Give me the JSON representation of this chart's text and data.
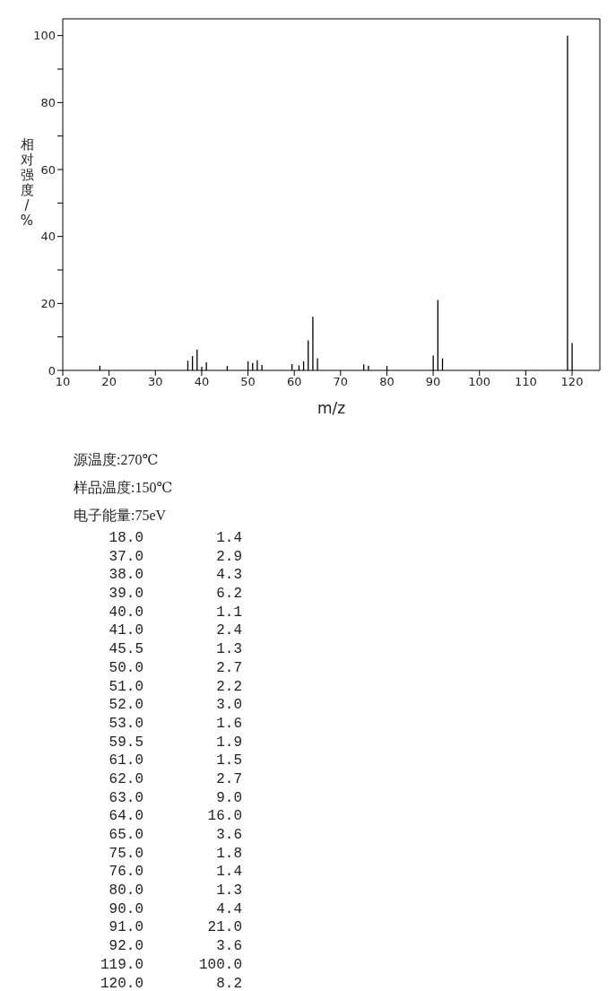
{
  "chart_data": [
    {
      "type": "bar",
      "xlabel": "m/z",
      "ylabel": "相对强度/%",
      "x": [
        18,
        37,
        38,
        39,
        40,
        41,
        45.5,
        50,
        51,
        52,
        53,
        59.5,
        61,
        62,
        63,
        64,
        65,
        75,
        76,
        80,
        90,
        91,
        92,
        119,
        120
      ],
      "values": [
        1.4,
        2.9,
        4.3,
        6.2,
        1.1,
        2.4,
        1.3,
        2.7,
        2.2,
        3.0,
        1.6,
        1.9,
        1.5,
        2.7,
        9.0,
        16.0,
        3.6,
        1.8,
        1.4,
        1.3,
        4.4,
        21.0,
        3.6,
        100.0,
        8.2
      ],
      "color": "#000000",
      "xlim": [
        10,
        126
      ],
      "xticks": [
        10,
        20,
        30,
        40,
        50,
        60,
        70,
        80,
        90,
        100,
        110,
        120
      ],
      "ylim": [
        0,
        105
      ],
      "yticks": [
        0,
        {
          "value": 10,
          "label": null
        },
        20,
        {
          "value": 30,
          "label": null
        },
        40,
        {
          "value": 50,
          "label": null
        },
        60,
        {
          "value": 70,
          "label": null
        },
        80,
        {
          "value": 90,
          "label": null
        },
        100
      ]
    },
    {
      "type": "other",
      "annotations": [
        "源温度:270℃",
        "样品温度:150℃",
        "电子能量:75eV",
        "18.0",
        "1.4",
        "37.0",
        "2.9",
        "38.0",
        "4.3",
        "39.0",
        "6.2",
        "40.0",
        "1.1",
        "41.0",
        "2.4",
        "45.5",
        "1.3",
        "50.0",
        "2.7",
        "51.0",
        "2.2",
        "52.0",
        "3.0",
        "53.0",
        "1.6",
        "59.5",
        "1.9",
        "61.0",
        "1.5",
        "62.0",
        "2.7",
        "63.0",
        "9.0",
        "64.0",
        "16.0",
        "65.0",
        "3.6",
        "75.0",
        "1.8",
        "76.0",
        "1.4",
        "80.0",
        "1.3",
        "90.0",
        "4.4",
        "91.0",
        "21.0",
        "92.0",
        "3.6",
        "119.0",
        "100.0",
        "120.0",
        "8.2"
      ]
    }
  ]
}
